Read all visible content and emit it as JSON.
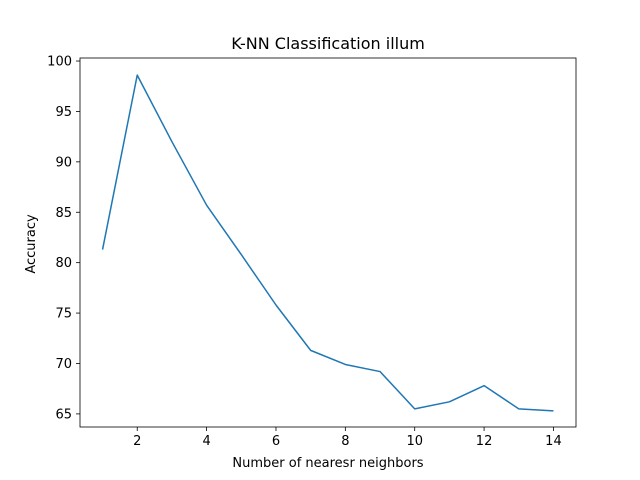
{
  "chart_data": {
    "type": "line",
    "title": "K-NN Classification illum",
    "xlabel": "Number of nearesr neighbors",
    "ylabel": "Accuracy",
    "xlim": [
      0.35,
      14.65
    ],
    "ylim": [
      63.7,
      100.3
    ],
    "xticks": [
      2,
      4,
      6,
      8,
      10,
      12,
      14
    ],
    "yticks": [
      65,
      70,
      75,
      80,
      85,
      90,
      95,
      100
    ],
    "grid": false,
    "series": [
      {
        "color": "#1f77b4",
        "x": [
          1,
          2,
          3,
          4,
          5,
          6,
          7,
          8,
          9,
          10,
          11,
          12,
          13,
          14
        ],
        "y": [
          81.3,
          98.6,
          92.0,
          85.7,
          80.8,
          75.8,
          71.3,
          69.9,
          69.2,
          65.5,
          66.2,
          67.8,
          65.5,
          65.3
        ]
      }
    ]
  }
}
